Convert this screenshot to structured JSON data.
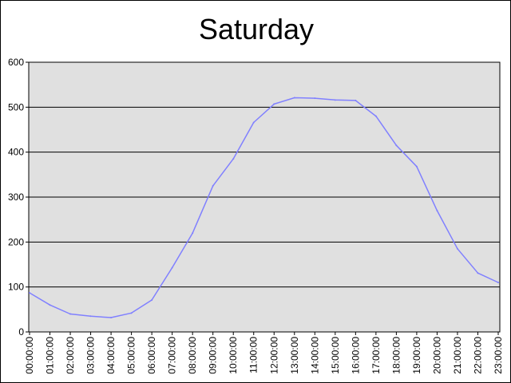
{
  "chart_data": {
    "type": "line",
    "title": "Saturday",
    "xlabel": "",
    "ylabel": "",
    "ylim": [
      0,
      600
    ],
    "yticks": [
      "0",
      "100",
      "200",
      "300",
      "400",
      "500",
      "600"
    ],
    "grid": true,
    "legend": "none",
    "colors": {
      "plot_background": "#e0e0e0",
      "line": "#8080ff",
      "gridline": "#000000"
    },
    "x": [
      "00:00:00",
      "01:00:00",
      "02:00:00",
      "03:00:00",
      "04:00:00",
      "05:00:00",
      "06:00:00",
      "07:00:00",
      "08:00:00",
      "09:00:00",
      "10:00:00",
      "11:00:00",
      "12:00:00",
      "13:00:00",
      "14:00:00",
      "15:00:00",
      "16:00:00",
      "17:00:00",
      "18:00:00",
      "19:00:00",
      "20:00:00",
      "21:00:00",
      "22:00:00",
      "23:00:00"
    ],
    "series": [
      {
        "values": [
          87,
          60,
          40,
          35,
          32,
          42,
          71,
          143,
          220,
          325,
          385,
          466,
          507,
          521,
          520,
          516,
          515,
          480,
          415,
          368,
          270,
          185,
          131,
          110
        ]
      }
    ]
  }
}
